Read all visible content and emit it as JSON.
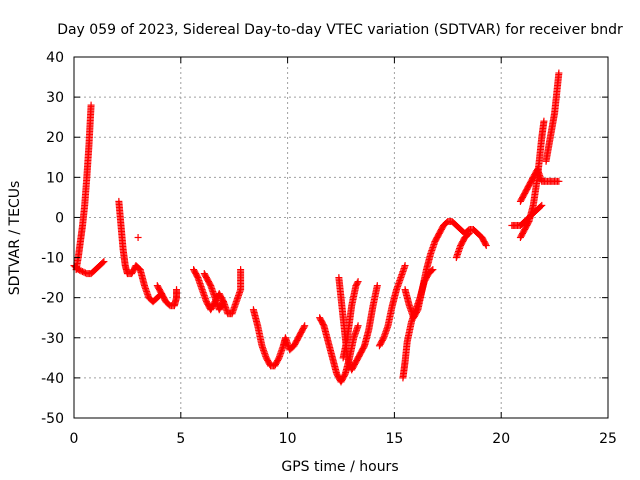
{
  "chart_data": {
    "type": "scatter",
    "title": "Day 059 of 2023, Sidereal Day-to-day VTEC variation (SDTVAR) for receiver bndr",
    "xlabel": "GPS time / hours",
    "ylabel": "SDTVAR / TECUs",
    "xlim": [
      0,
      25
    ],
    "ylim": [
      -50,
      40
    ],
    "xticks": [
      "0",
      "5",
      "10",
      "15",
      "20",
      "25"
    ],
    "yticks": [
      "-50",
      "-40",
      "-30",
      "-20",
      "-10",
      "0",
      "10",
      "20",
      "30",
      "40"
    ],
    "grid": true,
    "marker": "plus",
    "color": "#ff0000",
    "series": [
      {
        "name": "",
        "segments": [
          [
            [
              0.0,
              -12
            ],
            [
              0.2,
              -13
            ],
            [
              0.4,
              -13.5
            ],
            [
              0.6,
              -14
            ],
            [
              0.8,
              -14
            ],
            [
              1.0,
              -13
            ],
            [
              1.2,
              -12
            ],
            [
              1.4,
              -11
            ]
          ],
          [
            [
              0.1,
              -13
            ],
            [
              0.2,
              -10
            ],
            [
              0.3,
              -6
            ],
            [
              0.4,
              -2
            ],
            [
              0.5,
              3
            ],
            [
              0.6,
              10
            ],
            [
              0.7,
              18
            ],
            [
              0.75,
              23
            ],
            [
              0.8,
              28
            ]
          ],
          [
            [
              2.1,
              4
            ],
            [
              2.2,
              -2
            ],
            [
              2.3,
              -8
            ],
            [
              2.4,
              -12
            ],
            [
              2.5,
              -14
            ],
            [
              2.7,
              -14
            ],
            [
              2.9,
              -12
            ],
            [
              3.1,
              -13
            ],
            [
              3.3,
              -17
            ],
            [
              3.5,
              -20
            ],
            [
              3.7,
              -21
            ],
            [
              3.9,
              -20
            ],
            [
              4.1,
              -19
            ]
          ],
          [
            [
              3.0,
              -5
            ]
          ],
          [
            [
              3.9,
              -17
            ],
            [
              4.1,
              -19
            ],
            [
              4.3,
              -21
            ],
            [
              4.5,
              -22
            ],
            [
              4.7,
              -22
            ],
            [
              4.8,
              -20
            ],
            [
              4.8,
              -18
            ]
          ],
          [
            [
              5.6,
              -13
            ],
            [
              5.8,
              -15
            ],
            [
              6.0,
              -18
            ],
            [
              6.2,
              -21
            ],
            [
              6.4,
              -23
            ],
            [
              6.6,
              -21
            ],
            [
              6.8,
              -19
            ],
            [
              7.0,
              -21
            ],
            [
              7.2,
              -24
            ],
            [
              7.4,
              -24
            ],
            [
              7.6,
              -21
            ],
            [
              7.8,
              -18
            ],
            [
              7.8,
              -13
            ]
          ],
          [
            [
              6.1,
              -14
            ],
            [
              6.4,
              -17
            ],
            [
              6.6,
              -20
            ],
            [
              6.8,
              -23
            ],
            [
              7.0,
              -21
            ]
          ],
          [
            [
              8.4,
              -23
            ],
            [
              8.6,
              -27
            ],
            [
              8.8,
              -32
            ],
            [
              9.0,
              -35
            ],
            [
              9.2,
              -37
            ],
            [
              9.4,
              -37
            ],
            [
              9.6,
              -35
            ],
            [
              9.8,
              -32
            ],
            [
              9.9,
              -30
            ],
            [
              10.1,
              -33
            ],
            [
              10.3,
              -32
            ],
            [
              10.5,
              -30
            ],
            [
              10.7,
              -28
            ],
            [
              10.8,
              -27
            ]
          ],
          [
            [
              11.5,
              -25
            ],
            [
              11.7,
              -27
            ],
            [
              11.9,
              -31
            ],
            [
              12.1,
              -35
            ],
            [
              12.3,
              -39
            ],
            [
              12.5,
              -41
            ],
            [
              12.7,
              -39
            ],
            [
              12.9,
              -35
            ],
            [
              13.1,
              -30
            ],
            [
              13.3,
              -27
            ]
          ],
          [
            [
              12.4,
              -15
            ],
            [
              12.6,
              -25
            ],
            [
              12.8,
              -35
            ],
            [
              13.0,
              -38
            ],
            [
              13.2,
              -36
            ],
            [
              13.4,
              -34
            ],
            [
              13.6,
              -32
            ],
            [
              13.8,
              -28
            ],
            [
              14.0,
              -22
            ],
            [
              14.2,
              -17
            ]
          ],
          [
            [
              12.6,
              -35
            ],
            [
              12.8,
              -30
            ],
            [
              13.0,
              -22
            ],
            [
              13.2,
              -17
            ],
            [
              13.3,
              -16
            ]
          ],
          [
            [
              14.3,
              -32
            ],
            [
              14.5,
              -30
            ],
            [
              14.7,
              -27
            ],
            [
              14.9,
              -22
            ],
            [
              15.1,
              -18
            ],
            [
              15.3,
              -15
            ],
            [
              15.5,
              -12
            ]
          ],
          [
            [
              15.4,
              -40
            ],
            [
              15.5,
              -36
            ],
            [
              15.6,
              -31
            ],
            [
              15.8,
              -26
            ],
            [
              16.0,
              -23
            ],
            [
              16.2,
              -20
            ],
            [
              16.4,
              -16
            ],
            [
              16.6,
              -14
            ],
            [
              16.8,
              -13
            ]
          ],
          [
            [
              15.5,
              -18
            ],
            [
              15.7,
              -22
            ],
            [
              15.9,
              -25
            ],
            [
              16.1,
              -23
            ],
            [
              16.3,
              -18
            ],
            [
              16.5,
              -13
            ],
            [
              16.7,
              -9
            ],
            [
              16.9,
              -6
            ],
            [
              17.1,
              -4
            ],
            [
              17.3,
              -2
            ],
            [
              17.5,
              -1
            ],
            [
              17.7,
              -1
            ],
            [
              17.9,
              -2
            ],
            [
              18.1,
              -3
            ],
            [
              18.3,
              -4
            ],
            [
              18.5,
              -3
            ],
            [
              18.7,
              -3
            ],
            [
              18.9,
              -4
            ],
            [
              19.1,
              -5
            ],
            [
              19.3,
              -7
            ]
          ],
          [
            [
              17.9,
              -10
            ],
            [
              18.1,
              -7
            ],
            [
              18.3,
              -5
            ],
            [
              18.5,
              -4
            ]
          ],
          [
            [
              20.5,
              -2
            ],
            [
              20.7,
              -2
            ],
            [
              20.9,
              -2
            ],
            [
              21.1,
              -1
            ],
            [
              21.3,
              0
            ],
            [
              21.5,
              1
            ],
            [
              21.7,
              2
            ],
            [
              21.9,
              3
            ]
          ],
          [
            [
              20.9,
              -5
            ],
            [
              21.1,
              -3
            ],
            [
              21.3,
              -1
            ],
            [
              21.5,
              3
            ],
            [
              21.7,
              10
            ],
            [
              21.9,
              20
            ],
            [
              22.0,
              24
            ]
          ],
          [
            [
              20.9,
              4
            ],
            [
              21.1,
              6
            ],
            [
              21.3,
              8
            ],
            [
              21.5,
              10
            ],
            [
              21.7,
              12
            ],
            [
              21.9,
              9
            ],
            [
              22.1,
              9
            ],
            [
              22.3,
              9
            ],
            [
              22.5,
              9
            ],
            [
              22.7,
              9
            ]
          ],
          [
            [
              22.1,
              14
            ],
            [
              22.3,
              20
            ],
            [
              22.5,
              26
            ],
            [
              22.6,
              31
            ],
            [
              22.7,
              36
            ]
          ]
        ]
      }
    ]
  }
}
